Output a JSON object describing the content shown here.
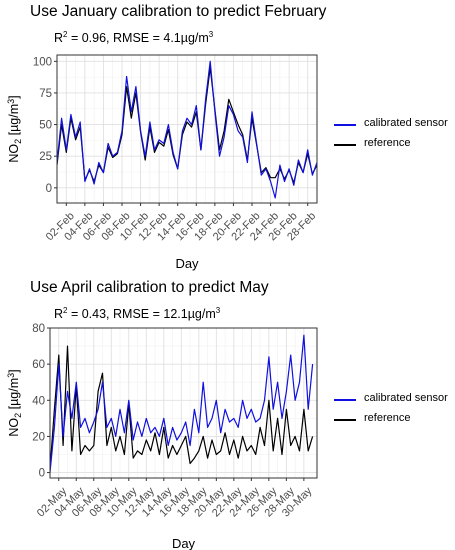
{
  "chart_data": [
    {
      "type": "line",
      "title": "Use January calibration to predict February",
      "subtitle_prefix": "R",
      "subtitle_sup": "2",
      "subtitle_mid": " = 0.96, RMSE = 4.1µg/m",
      "subtitle_sup2": "3",
      "xlabel": "Day",
      "ylabel_base": "NO",
      "ylabel_sub": "2",
      "ylabel_rest": " [µg/m",
      "ylabel_sup": "3",
      "ylabel_end": "]",
      "ylim": [
        -12,
        105
      ],
      "yticks": [
        0,
        25,
        50,
        75,
        100
      ],
      "xlim": [
        1,
        29
      ],
      "xticks": [
        2,
        4,
        6,
        8,
        10,
        12,
        14,
        16,
        18,
        20,
        22,
        24,
        26,
        28
      ],
      "xtick_labels": [
        "02-Feb",
        "04-Feb",
        "06-Feb",
        "08-Feb",
        "10-Feb",
        "12-Feb",
        "14-Feb",
        "16-Feb",
        "18-Feb",
        "20-Feb",
        "22-Feb",
        "24-Feb",
        "26-Feb",
        "28-Feb"
      ],
      "grid": true,
      "legend_position": "right",
      "series": [
        {
          "name": "calibrated sensor",
          "color": "#1010e0",
          "x": [
            1,
            1.5,
            2,
            2.5,
            3,
            3.5,
            4,
            4.5,
            5,
            5.5,
            6,
            6.5,
            7,
            7.5,
            8,
            8.5,
            9,
            9.5,
            10,
            10.5,
            11,
            11.5,
            12,
            12.5,
            13,
            13.5,
            14,
            14.5,
            15,
            15.5,
            16,
            16.5,
            17,
            17.5,
            18,
            18.5,
            19,
            19.5,
            20,
            20.5,
            21,
            21.5,
            22,
            22.5,
            23,
            23.5,
            24,
            24.5,
            25,
            25.5,
            26,
            26.5,
            27,
            27.5,
            28,
            28.5,
            29
          ],
          "values": [
            20,
            55,
            30,
            58,
            40,
            52,
            5,
            15,
            3,
            20,
            12,
            35,
            25,
            28,
            45,
            88,
            60,
            80,
            45,
            25,
            52,
            30,
            38,
            35,
            50,
            28,
            15,
            45,
            55,
            50,
            65,
            30,
            70,
            100,
            60,
            25,
            40,
            65,
            58,
            45,
            40,
            20,
            60,
            35,
            10,
            15,
            5,
            -8,
            18,
            5,
            15,
            2,
            22,
            12,
            30,
            10,
            20
          ]
        },
        {
          "name": "reference",
          "color": "#000000",
          "x": [
            1,
            1.5,
            2,
            2.5,
            3,
            3.5,
            4,
            4.5,
            5,
            5.5,
            6,
            6.5,
            7,
            7.5,
            8,
            8.5,
            9,
            9.5,
            10,
            10.5,
            11,
            11.5,
            12,
            12.5,
            13,
            13.5,
            14,
            14.5,
            15,
            15.5,
            16,
            16.5,
            17,
            17.5,
            18,
            18.5,
            19,
            19.5,
            20,
            20.5,
            21,
            21.5,
            22,
            22.5,
            23,
            23.5,
            24,
            24.5,
            25,
            25.5,
            26,
            26.5,
            27,
            27.5,
            28,
            28.5,
            29
          ],
          "values": [
            18,
            50,
            28,
            55,
            38,
            48,
            6,
            14,
            5,
            18,
            12,
            32,
            24,
            27,
            42,
            80,
            55,
            75,
            44,
            22,
            48,
            28,
            36,
            33,
            46,
            26,
            15,
            42,
            52,
            48,
            60,
            30,
            66,
            95,
            62,
            30,
            45,
            70,
            60,
            50,
            42,
            22,
            55,
            34,
            12,
            16,
            8,
            8,
            15,
            7,
            14,
            4,
            20,
            12,
            27,
            11,
            18
          ]
        }
      ]
    },
    {
      "type": "line",
      "title": "Use April calibration to predict May",
      "subtitle_prefix": "R",
      "subtitle_sup": "2",
      "subtitle_mid": " = 0.43, RMSE = 12.1µg/m",
      "subtitle_sup2": "3",
      "xlabel": "Day",
      "ylabel_base": "NO",
      "ylabel_sub": "2",
      "ylabel_rest": " [µg/m",
      "ylabel_sup": "3",
      "ylabel_end": "]",
      "ylim": [
        -3,
        80
      ],
      "yticks": [
        0,
        20,
        40,
        60,
        80
      ],
      "xlim": [
        1,
        31.5
      ],
      "xticks": [
        2,
        4,
        6,
        8,
        10,
        12,
        14,
        16,
        18,
        20,
        22,
        24,
        26,
        28,
        30
      ],
      "xtick_labels": [
        "02-May",
        "04-May",
        "06-May",
        "08-May",
        "10-May",
        "12-May",
        "14-May",
        "16-May",
        "18-May",
        "20-May",
        "22-May",
        "24-May",
        "26-May",
        "28-May",
        "30-May"
      ],
      "grid": true,
      "legend_position": "right",
      "series": [
        {
          "name": "calibrated sensor",
          "color": "#1010e0",
          "x": [
            1,
            1.5,
            2,
            2.5,
            3,
            3.5,
            4,
            4.5,
            5,
            5.5,
            6,
            6.5,
            7,
            7.5,
            8,
            8.5,
            9,
            9.5,
            10,
            10.5,
            11,
            11.5,
            12,
            12.5,
            13,
            13.5,
            14,
            14.5,
            15,
            15.5,
            16,
            16.5,
            17,
            17.5,
            18,
            18.5,
            19,
            19.5,
            20,
            20.5,
            21,
            21.5,
            22,
            22.5,
            23,
            23.5,
            24,
            24.5,
            25,
            25.5,
            26,
            26.5,
            27,
            27.5,
            28,
            28.5,
            29,
            29.5,
            30,
            30.5,
            31
          ],
          "values": [
            0,
            25,
            60,
            20,
            45,
            30,
            50,
            25,
            30,
            22,
            28,
            35,
            50,
            25,
            30,
            20,
            35,
            22,
            40,
            18,
            28,
            20,
            30,
            22,
            25,
            20,
            30,
            15,
            25,
            18,
            22,
            28,
            15,
            35,
            22,
            50,
            25,
            30,
            40,
            22,
            35,
            28,
            30,
            25,
            40,
            30,
            35,
            28,
            30,
            40,
            64,
            35,
            50,
            30,
            45,
            65,
            40,
            50,
            76,
            35,
            60
          ]
        },
        {
          "name": "reference",
          "color": "#000000",
          "x": [
            1,
            1.5,
            2,
            2.5,
            3,
            3.5,
            4,
            4.5,
            5,
            5.5,
            6,
            6.5,
            7,
            7.5,
            8,
            8.5,
            9,
            9.5,
            10,
            10.5,
            11,
            11.5,
            12,
            12.5,
            13,
            13.5,
            14,
            14.5,
            15,
            15.5,
            16,
            16.5,
            17,
            17.5,
            18,
            18.5,
            19,
            19.5,
            20,
            20.5,
            21,
            21.5,
            22,
            22.5,
            23,
            23.5,
            24,
            24.5,
            25,
            25.5,
            26,
            26.5,
            27,
            27.5,
            28,
            28.5,
            29,
            29.5,
            30,
            30.5,
            31
          ],
          "values": [
            2,
            35,
            65,
            15,
            70,
            12,
            48,
            10,
            15,
            12,
            15,
            45,
            55,
            15,
            25,
            12,
            20,
            10,
            38,
            8,
            12,
            10,
            18,
            12,
            22,
            10,
            25,
            8,
            15,
            10,
            15,
            20,
            5,
            8,
            12,
            20,
            8,
            18,
            10,
            12,
            22,
            10,
            18,
            8,
            20,
            12,
            15,
            10,
            25,
            15,
            40,
            12,
            30,
            10,
            35,
            15,
            20,
            12,
            35,
            12,
            20
          ]
        }
      ]
    }
  ]
}
